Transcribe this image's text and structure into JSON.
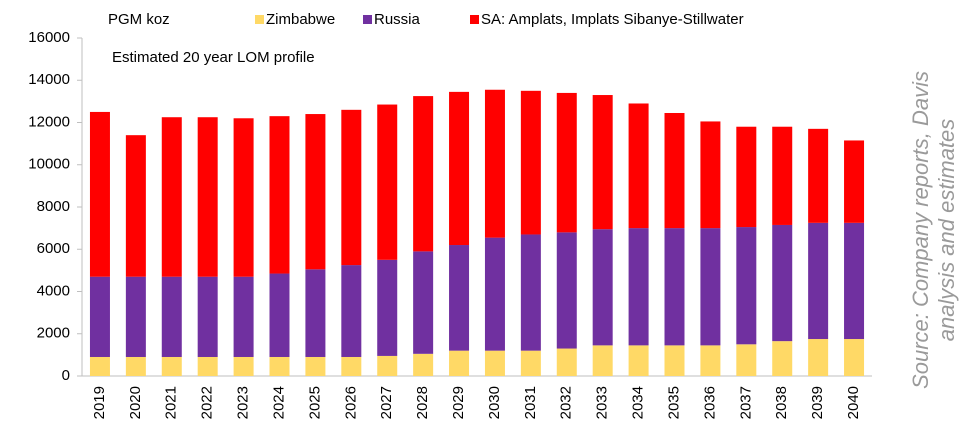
{
  "chart_data": {
    "type": "stacked_bar",
    "title": "PGM koz",
    "subtitle": "Estimated  20 year  LOM profile",
    "source": [
      "Source: Company reports, Davis",
      "analysis and estimates"
    ],
    "categories": [
      "2019",
      "2020",
      "2021",
      "2022",
      "2023",
      "2024",
      "2025",
      "2026",
      "2027",
      "2028",
      "2029",
      "2030",
      "2031",
      "2032",
      "2033",
      "2034",
      "2035",
      "2036",
      "2037",
      "2038",
      "2039",
      "2040"
    ],
    "series": [
      {
        "name": "Zimbabwe",
        "color": "#ffd966",
        "values": [
          900,
          900,
          900,
          900,
          900,
          900,
          900,
          900,
          950,
          1050,
          1200,
          1200,
          1200,
          1300,
          1450,
          1450,
          1450,
          1450,
          1500,
          1650,
          1750,
          1750
        ]
      },
      {
        "name": "Russia",
        "color": "#7030a0",
        "values": [
          3800,
          3800,
          3800,
          3800,
          3800,
          3950,
          4150,
          4350,
          4550,
          4850,
          5000,
          5350,
          5500,
          5500,
          5500,
          5550,
          5550,
          5550,
          5550,
          5500,
          5500,
          5500
        ]
      },
      {
        "name": "SA: Amplats, Implats Sibanye-Stillwater",
        "color": "#ff0000",
        "values": [
          7800,
          6700,
          7550,
          7550,
          7500,
          7450,
          7350,
          7350,
          7350,
          7350,
          7250,
          7000,
          6800,
          6600,
          6350,
          5900,
          5450,
          5050,
          4750,
          4650,
          4450,
          3900
        ]
      }
    ],
    "ylim": [
      0,
      16000
    ],
    "yticks": [
      0,
      2000,
      4000,
      6000,
      8000,
      10000,
      12000,
      14000,
      16000
    ],
    "grid": false,
    "legend": "top"
  }
}
